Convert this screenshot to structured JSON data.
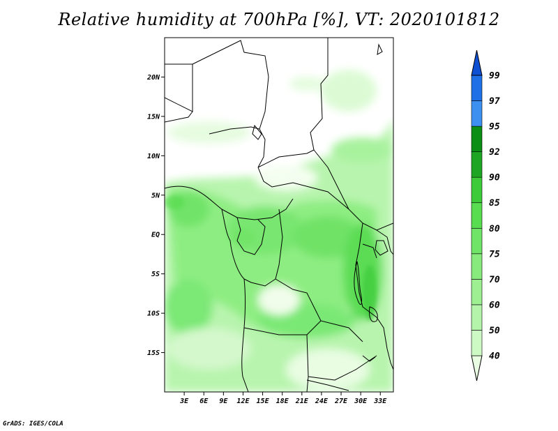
{
  "title": "Relative humidity at 700hPa [%], VT: 2020101812",
  "credit": "GrADS: IGES/COLA",
  "map": {
    "lon_range": [
      0,
      35
    ],
    "lat_range": [
      -20,
      25
    ],
    "x_ticks": [
      "3E",
      "6E",
      "9E",
      "12E",
      "15E",
      "18E",
      "21E",
      "24E",
      "27E",
      "30E",
      "33E"
    ],
    "y_ticks": [
      "20N",
      "15N",
      "10N",
      "5N",
      "EQ",
      "5S",
      "10S",
      "15S"
    ]
  },
  "colorbar": {
    "levels": [
      "40",
      "50",
      "60",
      "70",
      "75",
      "80",
      "85",
      "90",
      "92",
      "95",
      "97",
      "99"
    ],
    "colors": [
      "#e8fde2",
      "#ccf9c4",
      "#b4f4aa",
      "#9eef92",
      "#88ea7c",
      "#70e466",
      "#58dc50",
      "#3ecb3a",
      "#1ea524",
      "#0a8e14",
      "#3d8ff0",
      "#1f6fe6",
      "#0f4fd2"
    ]
  }
}
